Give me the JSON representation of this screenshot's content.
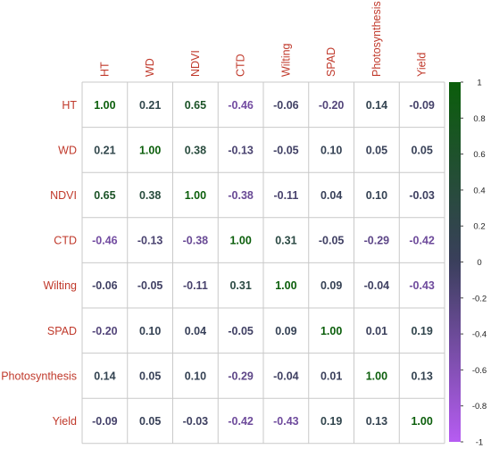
{
  "chart_data": {
    "type": "heatmap",
    "title": "",
    "variables": [
      "HT",
      "WD",
      "NDVI",
      "CTD",
      "Wilting",
      "SPAD",
      "Photosynthesis",
      "Yield"
    ],
    "matrix": [
      [
        1.0,
        0.21,
        0.65,
        -0.46,
        -0.06,
        -0.2,
        0.14,
        -0.09
      ],
      [
        0.21,
        1.0,
        0.38,
        -0.13,
        -0.05,
        0.1,
        0.05,
        0.05
      ],
      [
        0.65,
        0.38,
        1.0,
        -0.38,
        -0.11,
        0.04,
        0.1,
        -0.03
      ],
      [
        -0.46,
        -0.13,
        -0.38,
        1.0,
        0.31,
        -0.05,
        -0.29,
        -0.42
      ],
      [
        -0.06,
        -0.05,
        -0.11,
        0.31,
        1.0,
        0.09,
        -0.04,
        -0.43
      ],
      [
        -0.2,
        0.1,
        0.04,
        -0.05,
        0.09,
        1.0,
        0.01,
        0.19
      ],
      [
        0.14,
        0.05,
        0.1,
        -0.29,
        -0.04,
        0.01,
        1.0,
        0.13
      ],
      [
        -0.09,
        0.05,
        -0.03,
        -0.42,
        -0.43,
        0.19,
        0.13,
        1.0
      ]
    ],
    "colorbar": {
      "range": [
        -1,
        1
      ],
      "ticks": [
        "1",
        "0.8",
        "0.6",
        "0.4",
        "0.2",
        "0",
        "-0.2",
        "-0.4",
        "-0.6",
        "-0.8",
        "-1"
      ],
      "colors": {
        "high": "#0b5e0b",
        "mid": "#3a3f5c",
        "low": "#b65cf2"
      }
    },
    "label_color": "#c0392b",
    "grid_color": "#c9c9c9"
  }
}
